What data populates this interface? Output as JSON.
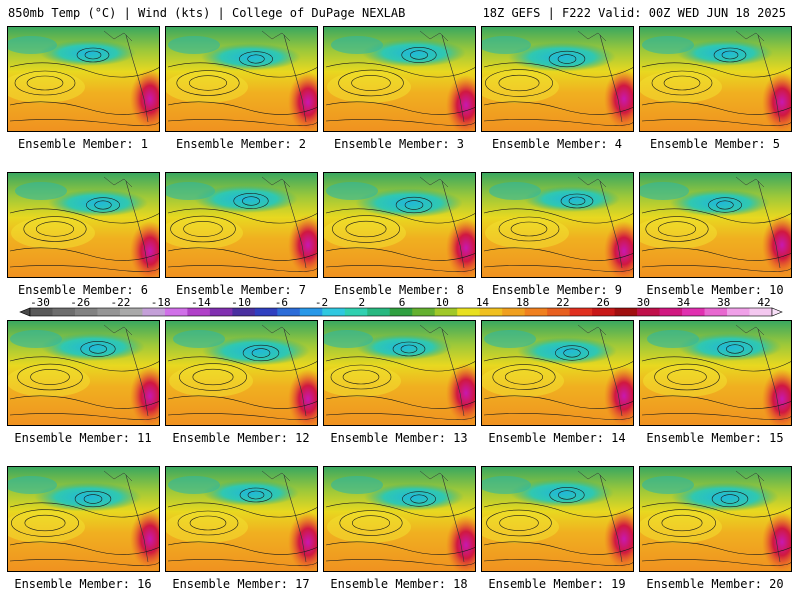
{
  "header": {
    "left": "850mb Temp (°C) | Wind (kts) | College of DuPage NEXLAB",
    "right": "18Z GEFS | F222 Valid: 00Z WED JUN 18 2025"
  },
  "map": {
    "title": "850mb Temp (°C)",
    "members": [
      {
        "label": "Ensemble Member: 1"
      },
      {
        "label": "Ensemble Member: 2"
      },
      {
        "label": "Ensemble Member: 3"
      },
      {
        "label": "Ensemble Member: 4"
      },
      {
        "label": "Ensemble Member: 5"
      },
      {
        "label": "Ensemble Member: 6"
      },
      {
        "label": "Ensemble Member: 7"
      },
      {
        "label": "Ensemble Member: 8"
      },
      {
        "label": "Ensemble Member: 9"
      },
      {
        "label": "Ensemble Member: 10"
      },
      {
        "label": "Ensemble Member: 11"
      },
      {
        "label": "Ensemble Member: 12"
      },
      {
        "label": "Ensemble Member: 13"
      },
      {
        "label": "Ensemble Member: 14"
      },
      {
        "label": "Ensemble Member: 15"
      },
      {
        "label": "Ensemble Member: 16"
      },
      {
        "label": "Ensemble Member: 17"
      },
      {
        "label": "Ensemble Member: 18"
      },
      {
        "label": "Ensemble Member: 19"
      },
      {
        "label": "Ensemble Member: 20"
      }
    ]
  },
  "colorbar": {
    "ticks": [
      "-30",
      "-26",
      "-22",
      "-18",
      "-14",
      "-10",
      "-6",
      "-2",
      "2",
      "6",
      "10",
      "14",
      "18",
      "22",
      "26",
      "30",
      "34",
      "38",
      "42"
    ],
    "colors": [
      "#5a5a5a",
      "#6e6e6e",
      "#828282",
      "#969696",
      "#aaaaaa",
      "#c4a0d8",
      "#d070e8",
      "#b040c8",
      "#8030b0",
      "#4a30a0",
      "#3040c0",
      "#2c6cd8",
      "#2898e8",
      "#30c8e0",
      "#30d0b0",
      "#28b880",
      "#30a040",
      "#64b030",
      "#a0c828",
      "#e8e020",
      "#f0c020",
      "#f0a020",
      "#f08020",
      "#e86020",
      "#e03020",
      "#c81818",
      "#a01010",
      "#c0104a",
      "#d01880",
      "#e030b0",
      "#e868d0",
      "#f0a0e8",
      "#f4c8f0"
    ]
  }
}
